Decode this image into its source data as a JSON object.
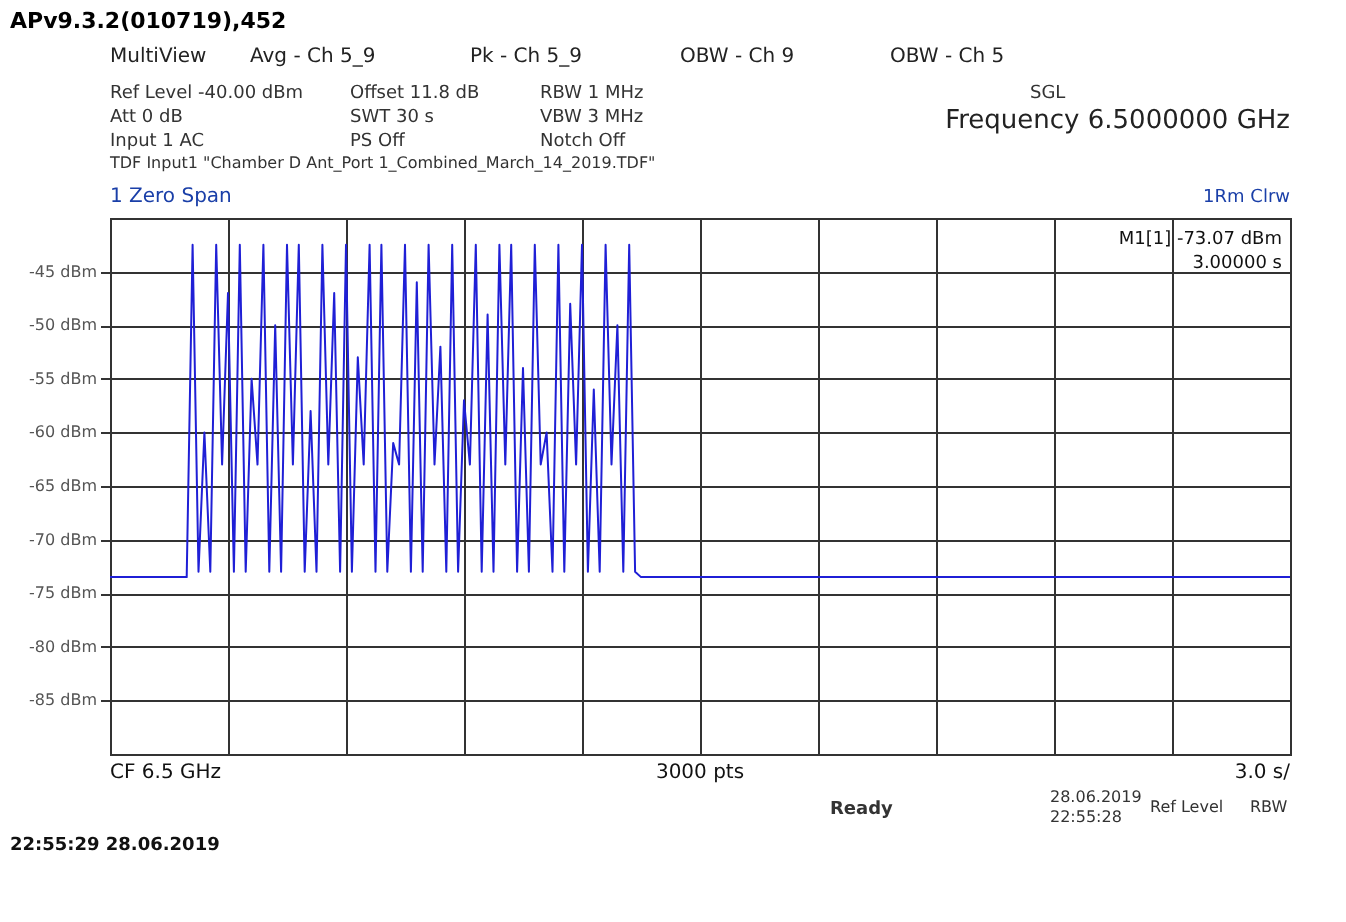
{
  "chart_data": {
    "type": "line",
    "title": "APv9.3.2(010719),452",
    "categories": [
      null,
      null,
      null,
      null,
      null,
      null,
      null,
      null,
      null,
      null,
      null,
      null,
      null,
      null,
      null,
      null,
      null,
      null,
      null,
      null,
      null,
      null,
      null,
      null,
      null,
      null,
      null,
      null,
      null,
      null,
      null,
      null,
      null,
      null,
      null,
      null,
      null,
      null,
      null,
      null,
      null,
      null,
      null,
      null,
      null,
      null,
      null,
      null,
      null,
      null,
      null,
      null,
      null,
      null,
      null,
      null,
      null,
      null,
      null,
      null,
      null,
      null,
      null,
      null,
      null,
      null,
      null,
      null,
      null,
      null,
      null,
      null,
      null,
      null,
      null,
      null,
      null,
      null,
      null,
      null,
      null,
      null,
      null,
      null,
      null,
      null,
      null,
      null,
      null,
      null,
      null,
      null,
      null,
      null,
      null,
      null,
      null,
      null,
      null,
      null,
      null,
      null,
      null,
      null,
      null,
      null,
      null,
      null,
      null,
      null,
      null,
      null,
      null,
      null,
      null,
      null,
      null,
      null,
      null,
      null,
      null,
      null,
      null,
      null,
      null,
      null,
      null,
      null,
      null,
      null,
      null,
      null,
      null,
      null,
      null,
      null,
      null,
      null,
      null,
      null,
      null,
      null,
      null,
      null,
      null,
      null,
      null,
      null,
      null,
      null,
      null,
      null,
      null,
      null,
      null,
      null,
      null,
      null,
      null,
      null,
      null,
      null,
      null,
      null,
      null,
      null,
      null,
      null,
      null,
      null,
      null,
      null,
      null,
      null,
      null,
      null,
      null,
      null,
      null,
      null,
      null,
      null,
      null,
      null,
      null,
      null,
      null,
      null,
      null,
      null,
      null,
      null,
      null,
      null,
      null,
      null,
      null,
      null,
      null,
      null,
      null
    ],
    "series": [
      {
        "color": "#1f1fd6",
        "values": [
          -73.5,
          -73.5,
          -73.5,
          -73.5,
          -73.5,
          -73.5,
          -73.5,
          -73.5,
          -73.5,
          -73.5,
          -73.5,
          -73.5,
          -73.5,
          -73.5,
          -42.5,
          -73,
          -60,
          -73,
          -42.5,
          -63,
          -47,
          -73,
          -42.5,
          -73,
          -55,
          -63,
          -42.5,
          -73,
          -50,
          -73,
          -42.5,
          -63,
          -42.5,
          -73,
          -58,
          -73,
          -42.5,
          -63,
          -47,
          -73,
          -42.5,
          -73,
          -53,
          -63,
          -42.5,
          -73,
          -42.5,
          -73,
          -61,
          -63,
          -42.5,
          -73,
          -46,
          -73,
          -42.5,
          -63,
          -52,
          -73,
          -42.5,
          -73,
          -57,
          -63,
          -42.5,
          -73,
          -49,
          -73,
          -42.5,
          -63,
          -42.5,
          -73,
          -54,
          -73,
          -42.5,
          -63,
          -60,
          -73,
          -42.5,
          -73,
          -48,
          -63,
          -42.5,
          -73,
          -56,
          -73,
          -42.5,
          -63,
          -50,
          -73,
          -42.5,
          -73,
          -73.5,
          -73.5,
          -73.5,
          -73.5,
          -73.5,
          -73.5,
          -73.5,
          -73.5,
          -73.5,
          -73.5,
          -73.5,
          -73.5,
          -73.5,
          -73.5,
          -73.5,
          -73.5,
          -73.5,
          -73.5,
          -73.5,
          -73.5,
          -73.5,
          -73.5,
          -73.5,
          -73.5,
          -73.5,
          -73.5,
          -73.5,
          -73.5,
          -73.5,
          -73.5,
          -73.5,
          -73.5,
          -73.5,
          -73.5,
          -73.5,
          -73.5,
          -73.5,
          -73.5,
          -73.5,
          -73.5,
          -73.5,
          -73.5,
          -73.5,
          -73.5,
          -73.5,
          -73.5,
          -73.5,
          -73.5,
          -73.5,
          -73.5,
          -73.5,
          -73.5,
          -73.5,
          -73.5,
          -73.5,
          -73.5,
          -73.5,
          -73.5,
          -73.5,
          -73.5,
          -73.5,
          -73.5,
          -73.5,
          -73.5,
          -73.5,
          -73.5,
          -73.5,
          -73.5,
          -73.5,
          -73.5,
          -73.5,
          -73.5,
          -73.5,
          -73.5,
          -73.5,
          -73.5,
          -73.5,
          -73.5,
          -73.5,
          -73.5,
          -73.5,
          -73.5,
          -73.5,
          -73.5,
          -73.5,
          -73.5,
          -73.5,
          -73.5,
          -73.5,
          -73.5,
          -73.5,
          -73.5,
          -73.5,
          -73.5,
          -73.5,
          -73.5,
          -73.5,
          -73.5,
          -73.5,
          -73.5,
          -73.5,
          -73.5,
          -73.5,
          -73.5,
          -73.5,
          -73.5,
          -73.5,
          -73.5,
          -73.5,
          -73.5,
          -73.5
        ]
      }
    ],
    "ylim": [
      -90,
      -40
    ],
    "yticks": [
      {
        "value": -45,
        "label": "-45 dBm"
      },
      {
        "value": -50,
        "label": "-50 dBm"
      },
      {
        "value": -55,
        "label": "-55 dBm"
      },
      {
        "value": -60,
        "label": "-60 dBm"
      },
      {
        "value": -65,
        "label": "-65 dBm"
      },
      {
        "value": -70,
        "label": "-70 dBm"
      },
      {
        "value": -75,
        "label": "-75 dBm"
      },
      {
        "value": -80,
        "label": "-80 dBm"
      },
      {
        "value": -85,
        "label": "-85 dBm"
      }
    ],
    "grid": true,
    "tick_labels": "y",
    "annotations": [
      "MultiView",
      "Avg - Ch 5_9",
      "Pk - Ch 5_9",
      "OBW - Ch 9",
      "OBW - Ch 5",
      "Ref Level -40.00 dBm",
      "Offset 11.8 dB",
      "RBW 1 MHz",
      "Att 0 dB",
      "SWT 30 s",
      "VBW 3 MHz",
      "Input 1 AC",
      "PS Off",
      "Notch Off",
      "SGL",
      "Frequency 6.5000000 GHz",
      "TDF Input1 \"Chamber D Ant_Port 1_Combined_March_14_2019.TDF\"",
      "1 Zero Span",
      "1Rm Clrw",
      "M1[1] -73.07 dBm",
      "3.00000 s",
      "CF 6.5 GHz",
      "3000 pts",
      "3.0 s/",
      "Ready",
      "28.06.2019",
      "22:55:28",
      "Ref Level",
      "RBW",
      "22:55:29 28.06.2019"
    ]
  }
}
